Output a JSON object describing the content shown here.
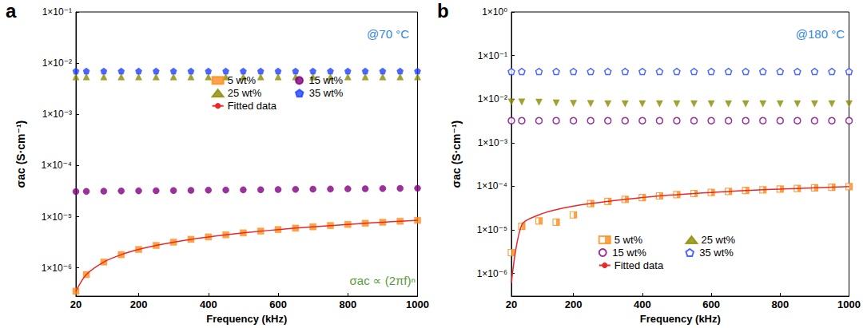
{
  "chart_data": [
    {
      "type": "scatter",
      "title": "a",
      "x_label": "Frequency (kHz)",
      "y_label": "σac (S·cm⁻¹)",
      "annotations": [
        {
          "text": "@70 °C",
          "color": "#2e86de"
        },
        {
          "text": "σac ∝ (2πf)ⁿ",
          "color": "#5a9a3a"
        }
      ],
      "x": [
        20,
        50,
        100,
        150,
        200,
        250,
        300,
        350,
        400,
        450,
        500,
        550,
        600,
        650,
        700,
        750,
        800,
        850,
        900,
        950,
        1000
      ],
      "xlim": [
        20,
        1000
      ],
      "xticks": [
        20,
        200,
        400,
        600,
        800,
        1000
      ],
      "log": "y",
      "ylim": [
        2.8e-07,
        0.1
      ],
      "yticks": [
        {
          "value": 1e-06,
          "label": "1×10⁻⁶"
        },
        {
          "value": 1e-05,
          "label": "1×10⁻⁵"
        },
        {
          "value": 0.0001,
          "label": "1×10⁻⁴"
        },
        {
          "value": 0.001,
          "label": "1×10⁻³"
        },
        {
          "value": 0.01,
          "label": "1×10⁻²"
        },
        {
          "value": 0.1,
          "label": "1×10⁻¹"
        }
      ],
      "grid": false,
      "legend": "right",
      "series": [
        {
          "name": "5 wt%",
          "type": "scatter",
          "marker": "square",
          "color": "#ff8c1a",
          "values": [
            3.5e-07,
            7.4e-07,
            1.3e-06,
            1.81e-06,
            2.29e-06,
            2.74e-06,
            3.18e-06,
            3.61e-06,
            4.02e-06,
            4.43e-06,
            4.83e-06,
            5.22e-06,
            5.6e-06,
            5.98e-06,
            6.35e-06,
            6.71e-06,
            7.07e-06,
            7.43e-06,
            7.79e-06,
            8.14e-06,
            8.48e-06
          ]
        },
        {
          "name": "15 wt%",
          "type": "scatter",
          "marker": "circle",
          "color": "#800080",
          "values": [
            3.1e-05,
            3.12e-05,
            3.15e-05,
            3.18e-05,
            3.2e-05,
            3.22e-05,
            3.25e-05,
            3.27e-05,
            3.3e-05,
            3.32e-05,
            3.35e-05,
            3.37e-05,
            3.4e-05,
            3.42e-05,
            3.45e-05,
            3.47e-05,
            3.5e-05,
            3.52e-05,
            3.55e-05,
            3.57e-05,
            3.6e-05
          ]
        },
        {
          "name": "25 wt%",
          "type": "scatter",
          "marker": "triangle",
          "color": "#8b8b00",
          "values": [
            0.0054,
            0.0054,
            0.0054,
            0.0054,
            0.0054,
            0.0054,
            0.0054,
            0.0054,
            0.0054,
            0.0054,
            0.0054,
            0.0054,
            0.0054,
            0.0054,
            0.0054,
            0.0054,
            0.0054,
            0.0054,
            0.0054,
            0.0054,
            0.0054
          ]
        },
        {
          "name": "35 wt%",
          "type": "scatter",
          "marker": "pentagon",
          "color": "#1f3fff",
          "values": [
            0.007,
            0.007,
            0.007,
            0.007,
            0.007,
            0.007,
            0.007,
            0.007,
            0.007,
            0.007,
            0.007,
            0.007,
            0.007,
            0.007,
            0.007,
            0.007,
            0.007,
            0.007,
            0.007,
            0.007,
            0.007
          ]
        },
        {
          "name": "Fitted data",
          "type": "line",
          "line_style": "solid",
          "color": "#e8282b",
          "values": [
            3.5e-07,
            7.4e-07,
            1.3e-06,
            1.81e-06,
            2.29e-06,
            2.74e-06,
            3.18e-06,
            3.61e-06,
            4.02e-06,
            4.43e-06,
            4.83e-06,
            5.22e-06,
            5.6e-06,
            5.98e-06,
            6.35e-06,
            6.71e-06,
            7.07e-06,
            7.43e-06,
            7.79e-06,
            8.14e-06,
            8.48e-06
          ]
        }
      ]
    },
    {
      "type": "scatter",
      "title": "b",
      "x_label": "Frequency (kHz)",
      "y_label": "σac (S·cm⁻¹)",
      "annotations": [
        {
          "text": "@180 °C",
          "color": "#2e86de"
        }
      ],
      "x": [
        20,
        50,
        100,
        150,
        200,
        250,
        300,
        350,
        400,
        450,
        500,
        550,
        600,
        650,
        700,
        750,
        800,
        850,
        900,
        950,
        1000
      ],
      "xlim": [
        20,
        1000
      ],
      "xticks": [
        20,
        200,
        400,
        600,
        800,
        1000
      ],
      "log": "y",
      "ylim": [
        3e-07,
        1
      ],
      "yticks": [
        {
          "value": 1e-06,
          "label": "1×10⁻⁶"
        },
        {
          "value": 1e-05,
          "label": "1×10⁻⁵"
        },
        {
          "value": 0.0001,
          "label": "1×10⁻⁴"
        },
        {
          "value": 0.001,
          "label": "1×10⁻³"
        },
        {
          "value": 0.01,
          "label": "1×10⁻²"
        },
        {
          "value": 0.1,
          "label": "1×10⁻¹"
        },
        {
          "value": 1,
          "label": "1×10⁰"
        }
      ],
      "grid": false,
      "legend": "lower right",
      "series": [
        {
          "name": "5 wt%",
          "type": "scatter",
          "marker": "square-half",
          "color": "#ff8c1a",
          "values": [
            3e-06,
            1.2e-05,
            1.6e-05,
            1.5e-05,
            2.2e-05,
            4e-05,
            4.5e-05,
            5e-05,
            5.5e-05,
            6e-05,
            6.4e-05,
            6.8e-05,
            7.2e-05,
            7.6e-05,
            8e-05,
            8.3e-05,
            8.6e-05,
            8.9e-05,
            9.2e-05,
            9.5e-05,
            9.8e-05
          ]
        },
        {
          "name": "25 wt%",
          "type": "scatter",
          "marker": "triangle-down",
          "color": "#8b8b00",
          "values": [
            0.0086,
            0.0086,
            0.0085,
            0.0082,
            0.008,
            0.0079,
            0.0078,
            0.0078,
            0.0078,
            0.0078,
            0.0078,
            0.0078,
            0.0078,
            0.0078,
            0.0078,
            0.0078,
            0.0078,
            0.0078,
            0.0078,
            0.0078,
            0.0078
          ]
        },
        {
          "name": "15 wt%",
          "type": "scatter",
          "marker": "circle-open",
          "color": "#800080",
          "values": [
            0.0032,
            0.0032,
            0.0032,
            0.0032,
            0.0032,
            0.0032,
            0.0032,
            0.0032,
            0.0032,
            0.0032,
            0.0032,
            0.0032,
            0.0032,
            0.0032,
            0.0032,
            0.0032,
            0.0032,
            0.0032,
            0.0032,
            0.0032,
            0.0032
          ]
        },
        {
          "name": "35 wt%",
          "type": "scatter",
          "marker": "pentagon-open",
          "color": "#1f3fff",
          "values": [
            0.043,
            0.043,
            0.043,
            0.043,
            0.043,
            0.043,
            0.043,
            0.043,
            0.043,
            0.043,
            0.043,
            0.043,
            0.043,
            0.043,
            0.043,
            0.043,
            0.043,
            0.043,
            0.043,
            0.043,
            0.043
          ]
        },
        {
          "name": "Fitted data",
          "type": "line",
          "line_style": "solid",
          "color": "#e8282b",
          "values": [
            6e-07,
            1.3e-05,
            2.2e-05,
            2.9e-05,
            3.5e-05,
            4e-05,
            4.5e-05,
            5e-05,
            5.5e-05,
            6e-05,
            6.4e-05,
            6.8e-05,
            7.2e-05,
            7.6e-05,
            8e-05,
            8.3e-05,
            8.6e-05,
            8.9e-05,
            9.2e-05,
            9.5e-05,
            9.8e-05
          ]
        }
      ]
    }
  ]
}
